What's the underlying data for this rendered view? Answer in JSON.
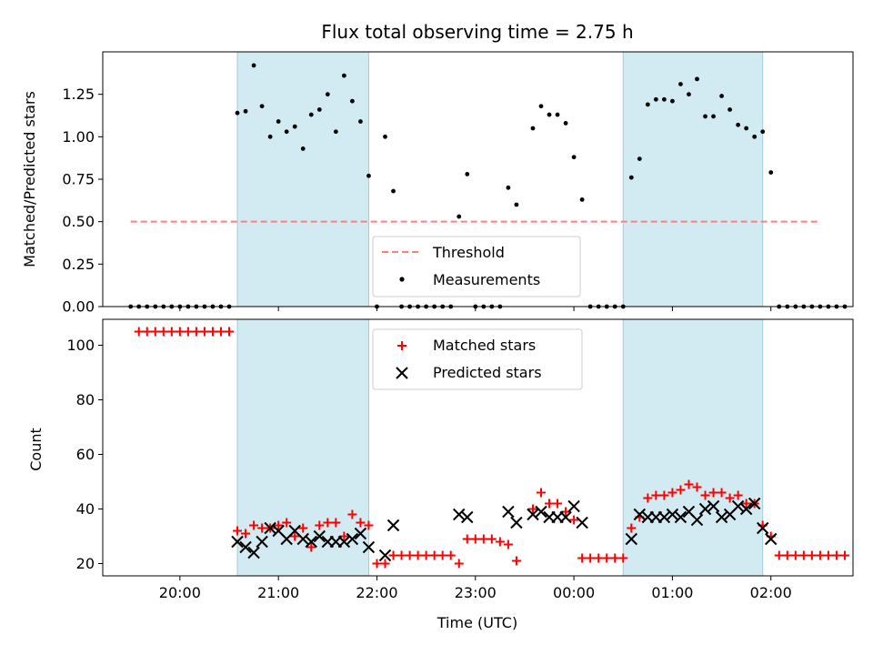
{
  "chart_data": {
    "title": "Flux total observing time = 2.75 h",
    "shaded_intervals": [
      [
        "20:35",
        "21:55"
      ],
      [
        "00:30",
        "01:55"
      ]
    ],
    "shade_color": "#add8e6",
    "x_ticks": [
      "20:00",
      "21:00",
      "22:00",
      "23:00",
      "00:00",
      "01:00",
      "02:00"
    ],
    "xlabel": "Time (UTC)",
    "x_range": [
      "19:13",
      "02:50"
    ],
    "panels": [
      {
        "type": "scatter",
        "ylabel": "Matched/Predicted stars",
        "ylim": [
          0,
          1.5
        ],
        "y_ticks": [
          "0.00",
          "0.25",
          "0.50",
          "0.75",
          "1.00",
          "1.25"
        ],
        "legend_position": "lower center",
        "threshold": {
          "name": "Threshold",
          "value": 0.5,
          "x_range": [
            "19:30",
            "02:30"
          ],
          "color": "#ff7f7f"
        },
        "series": [
          {
            "name": "Measurements",
            "color": "#000000",
            "points": [
              [
                "19:30",
                0
              ],
              [
                "19:35",
                0
              ],
              [
                "19:40",
                0
              ],
              [
                "19:45",
                0
              ],
              [
                "19:50",
                0
              ],
              [
                "19:55",
                0
              ],
              [
                "20:00",
                0
              ],
              [
                "20:05",
                0
              ],
              [
                "20:10",
                0
              ],
              [
                "20:15",
                0
              ],
              [
                "20:20",
                0
              ],
              [
                "20:25",
                0
              ],
              [
                "20:30",
                0
              ],
              [
                "20:35",
                1.14
              ],
              [
                "20:40",
                1.15
              ],
              [
                "20:45",
                1.42
              ],
              [
                "20:50",
                1.18
              ],
              [
                "20:55",
                1.0
              ],
              [
                "21:00",
                1.09
              ],
              [
                "21:05",
                1.03
              ],
              [
                "21:10",
                1.06
              ],
              [
                "21:15",
                0.93
              ],
              [
                "21:20",
                1.13
              ],
              [
                "21:25",
                1.16
              ],
              [
                "21:30",
                1.25
              ],
              [
                "21:35",
                1.03
              ],
              [
                "21:40",
                1.36
              ],
              [
                "21:45",
                1.21
              ],
              [
                "21:50",
                1.09
              ],
              [
                "21:55",
                0.77
              ],
              [
                "22:00",
                0
              ],
              [
                "22:05",
                1.0
              ],
              [
                "22:10",
                0.68
              ],
              [
                "22:15",
                0
              ],
              [
                "22:20",
                0
              ],
              [
                "22:25",
                0
              ],
              [
                "22:30",
                0
              ],
              [
                "22:35",
                0
              ],
              [
                "22:40",
                0
              ],
              [
                "22:45",
                0
              ],
              [
                "22:50",
                0.53
              ],
              [
                "22:55",
                0.78
              ],
              [
                "23:00",
                0
              ],
              [
                "23:05",
                0
              ],
              [
                "23:10",
                0
              ],
              [
                "23:15",
                0
              ],
              [
                "23:20",
                0.7
              ],
              [
                "23:25",
                0.6
              ],
              [
                "23:35",
                1.05
              ],
              [
                "23:40",
                1.18
              ],
              [
                "23:45",
                1.13
              ],
              [
                "23:50",
                1.13
              ],
              [
                "23:55",
                1.08
              ],
              [
                "00:00",
                0.88
              ],
              [
                "00:05",
                0.63
              ],
              [
                "00:10",
                0
              ],
              [
                "00:15",
                0
              ],
              [
                "00:20",
                0
              ],
              [
                "00:25",
                0
              ],
              [
                "00:30",
                0
              ],
              [
                "00:35",
                0.76
              ],
              [
                "00:40",
                0.87
              ],
              [
                "00:45",
                1.19
              ],
              [
                "00:50",
                1.22
              ],
              [
                "00:55",
                1.22
              ],
              [
                "01:00",
                1.21
              ],
              [
                "01:05",
                1.31
              ],
              [
                "01:10",
                1.25
              ],
              [
                "01:15",
                1.34
              ],
              [
                "01:20",
                1.12
              ],
              [
                "01:25",
                1.12
              ],
              [
                "01:30",
                1.24
              ],
              [
                "01:35",
                1.16
              ],
              [
                "01:40",
                1.07
              ],
              [
                "01:45",
                1.05
              ],
              [
                "01:50",
                1.0
              ],
              [
                "01:55",
                1.03
              ],
              [
                "02:00",
                0.79
              ],
              [
                "02:05",
                0
              ],
              [
                "02:10",
                0
              ],
              [
                "02:15",
                0
              ],
              [
                "02:20",
                0
              ],
              [
                "02:25",
                0
              ],
              [
                "02:30",
                0
              ],
              [
                "02:35",
                0
              ],
              [
                "02:40",
                0
              ],
              [
                "02:45",
                0
              ]
            ]
          }
        ]
      },
      {
        "type": "scatter",
        "ylabel": "Count",
        "ylim": [
          15.5,
          109.5
        ],
        "y_ticks": [
          "20",
          "40",
          "60",
          "80",
          "100"
        ],
        "legend_position": "upper center",
        "series": [
          {
            "name": "Matched stars",
            "marker": "plus",
            "color": "#ff0000",
            "points": [
              [
                "19:35",
                105
              ],
              [
                "19:40",
                105
              ],
              [
                "19:45",
                105
              ],
              [
                "19:50",
                105
              ],
              [
                "19:55",
                105
              ],
              [
                "20:00",
                105
              ],
              [
                "20:05",
                105
              ],
              [
                "20:10",
                105
              ],
              [
                "20:15",
                105
              ],
              [
                "20:20",
                105
              ],
              [
                "20:25",
                105
              ],
              [
                "20:30",
                105
              ],
              [
                "20:35",
                32
              ],
              [
                "20:40",
                31
              ],
              [
                "20:45",
                34
              ],
              [
                "20:50",
                33
              ],
              [
                "20:55",
                33
              ],
              [
                "21:00",
                34
              ],
              [
                "21:05",
                35
              ],
              [
                "21:10",
                30
              ],
              [
                "21:15",
                33
              ],
              [
                "21:20",
                26
              ],
              [
                "21:25",
                34
              ],
              [
                "21:30",
                35
              ],
              [
                "21:35",
                35
              ],
              [
                "21:40",
                30
              ],
              [
                "21:45",
                38
              ],
              [
                "21:50",
                35
              ],
              [
                "21:55",
                34
              ],
              [
                "22:00",
                20
              ],
              [
                "22:05",
                20
              ],
              [
                "22:10",
                23
              ],
              [
                "22:15",
                23
              ],
              [
                "22:20",
                23
              ],
              [
                "22:25",
                23
              ],
              [
                "22:30",
                23
              ],
              [
                "22:35",
                23
              ],
              [
                "22:40",
                23
              ],
              [
                "22:45",
                23
              ],
              [
                "22:50",
                20
              ],
              [
                "22:55",
                29
              ],
              [
                "23:00",
                29
              ],
              [
                "23:05",
                29
              ],
              [
                "23:10",
                29
              ],
              [
                "23:15",
                28
              ],
              [
                "23:20",
                27
              ],
              [
                "23:25",
                21
              ],
              [
                "23:35",
                40
              ],
              [
                "23:40",
                46
              ],
              [
                "23:45",
                42
              ],
              [
                "23:50",
                42
              ],
              [
                "23:55",
                39
              ],
              [
                "00:00",
                36
              ],
              [
                "00:05",
                22
              ],
              [
                "00:10",
                22
              ],
              [
                "00:15",
                22
              ],
              [
                "00:20",
                22
              ],
              [
                "00:25",
                22
              ],
              [
                "00:30",
                22
              ],
              [
                "00:35",
                33
              ],
              [
                "00:40",
                37
              ],
              [
                "00:45",
                44
              ],
              [
                "00:50",
                45
              ],
              [
                "00:55",
                45
              ],
              [
                "01:00",
                46
              ],
              [
                "01:05",
                47
              ],
              [
                "01:10",
                49
              ],
              [
                "01:15",
                48
              ],
              [
                "01:20",
                45
              ],
              [
                "01:25",
                46
              ],
              [
                "01:30",
                46
              ],
              [
                "01:35",
                44
              ],
              [
                "01:40",
                45
              ],
              [
                "01:45",
                42
              ],
              [
                "01:50",
                42
              ],
              [
                "01:55",
                34
              ],
              [
                "02:00",
                30
              ],
              [
                "02:05",
                23
              ],
              [
                "02:10",
                23
              ],
              [
                "02:15",
                23
              ],
              [
                "02:20",
                23
              ],
              [
                "02:25",
                23
              ],
              [
                "02:30",
                23
              ],
              [
                "02:35",
                23
              ],
              [
                "02:40",
                23
              ],
              [
                "02:45",
                23
              ]
            ]
          },
          {
            "name": "Predicted stars",
            "marker": "x",
            "color": "#000000",
            "points": [
              [
                "20:35",
                28
              ],
              [
                "20:40",
                26
              ],
              [
                "20:45",
                24
              ],
              [
                "20:50",
                28
              ],
              [
                "20:55",
                33
              ],
              [
                "21:00",
                32
              ],
              [
                "21:05",
                29
              ],
              [
                "21:10",
                32
              ],
              [
                "21:15",
                29
              ],
              [
                "21:20",
                28
              ],
              [
                "21:25",
                30
              ],
              [
                "21:30",
                28
              ],
              [
                "21:35",
                28
              ],
              [
                "21:40",
                28
              ],
              [
                "21:45",
                29
              ],
              [
                "21:50",
                31
              ],
              [
                "21:55",
                26
              ],
              [
                "22:05",
                23
              ],
              [
                "22:10",
                34
              ],
              [
                "22:50",
                38
              ],
              [
                "22:55",
                37
              ],
              [
                "23:20",
                39
              ],
              [
                "23:25",
                35
              ],
              [
                "23:35",
                38
              ],
              [
                "23:40",
                39
              ],
              [
                "23:45",
                37
              ],
              [
                "23:50",
                37
              ],
              [
                "23:55",
                37
              ],
              [
                "00:00",
                41
              ],
              [
                "00:05",
                35
              ],
              [
                "00:35",
                29
              ],
              [
                "00:40",
                38
              ],
              [
                "00:45",
                37
              ],
              [
                "00:50",
                37
              ],
              [
                "00:55",
                37
              ],
              [
                "01:00",
                38
              ],
              [
                "01:05",
                37
              ],
              [
                "01:10",
                39
              ],
              [
                "01:15",
                36
              ],
              [
                "01:20",
                40
              ],
              [
                "01:25",
                41
              ],
              [
                "01:30",
                37
              ],
              [
                "01:35",
                38
              ],
              [
                "01:40",
                41
              ],
              [
                "01:45",
                40
              ],
              [
                "01:50",
                42
              ],
              [
                "01:55",
                33
              ],
              [
                "02:00",
                29
              ]
            ]
          }
        ]
      }
    ]
  }
}
